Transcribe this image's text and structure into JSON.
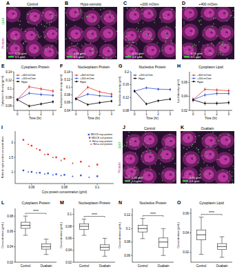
{
  "images": [
    {
      "panel": "A",
      "title": "Control",
      "channels": [
        {
          "name": "Lipid",
          "color": "#44c044"
        },
        {
          "name": "Protein",
          "color": "#c23aa8"
        }
      ],
      "scale_labels": [
        {
          "label": "0.16 g/ml",
          "color": "#c23aa8"
        },
        {
          "label": "0.1 g/ml",
          "color": "#44c044"
        }
      ]
    },
    {
      "panel": "B",
      "title": "Hypo-osmotic",
      "scale_labels": [
        {
          "label": "0.16 g/ml",
          "color": "#c23aa8"
        },
        {
          "label": "0.1 g/ml",
          "color": "#44c044"
        }
      ]
    },
    {
      "panel": "C",
      "title": "+200 mOsm",
      "scale_labels": [
        {
          "label": "0.16 g/ml",
          "color": "#c23aa8"
        },
        {
          "label": "0.1 g/ml",
          "color": "#44c044"
        }
      ]
    },
    {
      "panel": "D",
      "title": "+400 mOsm",
      "scale_labels": [
        {
          "label": "0.16 g/ml",
          "color": "#c23aa8"
        },
        {
          "label": "0.1 g/ml",
          "color": "#44c044"
        }
      ]
    },
    {
      "panel": "J",
      "title": "Control",
      "channels": [
        {
          "name": "Lipid",
          "color": "#44c044"
        },
        {
          "name": "Protein",
          "color": "#c23aa8"
        }
      ],
      "scale_labels": [
        {
          "label": "0.16 g/ml",
          "color": "#c23aa8"
        },
        {
          "label": "0.1 g/ml",
          "color": "#44c044"
        }
      ]
    },
    {
      "panel": "K",
      "title": "Ouabain",
      "scale_labels": [
        {
          "label": "0.16 g/ml",
          "color": "#c23aa8"
        },
        {
          "label": "0.1 g/ml",
          "color": "#44c044"
        }
      ]
    }
  ],
  "chart_data": [
    {
      "panel": "E",
      "type": "line",
      "title": "Cytoplasm Protein",
      "x_label": "Time (hr)",
      "y_label": "Cytoplasm density (g/ml)",
      "x": [
        0,
        1,
        2,
        3
      ],
      "xlim": [
        -0.3,
        3.3
      ],
      "xticks": [
        0,
        1,
        2,
        3
      ],
      "ylim": [
        0.05,
        0.14
      ],
      "yticks": [
        0.06,
        0.08,
        0.1,
        0.12,
        0.14
      ],
      "legend": "upper left",
      "series": [
        {
          "name": "+400 mOsm",
          "color": "#e8322a",
          "marker": "circle",
          "values": [
            0.075,
            0.105,
            0.1,
            0.095
          ],
          "errors": [
            0.004,
            0.005,
            0.005,
            0.005
          ]
        },
        {
          "name": "+200 mOsm",
          "color": "#3050d0",
          "marker": "circle",
          "values": [
            0.075,
            0.09,
            0.087,
            0.085
          ],
          "errors": [
            0.004,
            0.004,
            0.004,
            0.004
          ]
        },
        {
          "name": "Hypo",
          "color": "#000000",
          "marker": "circle",
          "values": [
            0.075,
            0.06,
            0.065,
            0.07
          ],
          "errors": [
            0.004,
            0.004,
            0.004,
            0.004
          ]
        }
      ]
    },
    {
      "panel": "F",
      "type": "line",
      "title": "Nucleoplasm Protein",
      "x_label": "Time (hr)",
      "y_label": "Nucleoplasm density (g/ml)",
      "x": [
        0,
        1,
        2,
        3
      ],
      "xlim": [
        -0.3,
        3.3
      ],
      "xticks": [
        0,
        1,
        2,
        3
      ],
      "ylim": [
        0.04,
        0.14
      ],
      "yticks": [
        0.04,
        0.06,
        0.08,
        0.1,
        0.12,
        0.14
      ],
      "legend": "upper left",
      "series": [
        {
          "name": "+400 mOsm",
          "color": "#e8322a",
          "marker": "circle",
          "values": [
            0.07,
            0.1,
            0.088,
            0.082
          ],
          "errors": [
            0.004,
            0.005,
            0.005,
            0.005
          ]
        },
        {
          "name": "+200 mOsm",
          "color": "#3050d0",
          "marker": "circle",
          "values": [
            0.07,
            0.082,
            0.078,
            0.076
          ],
          "errors": [
            0.004,
            0.004,
            0.004,
            0.004
          ]
        },
        {
          "name": "Hypo",
          "color": "#000000",
          "marker": "circle",
          "values": [
            0.07,
            0.055,
            0.06,
            0.064
          ],
          "errors": [
            0.004,
            0.004,
            0.004,
            0.004
          ]
        }
      ]
    },
    {
      "panel": "G",
      "type": "line",
      "title": "Nucleolus Protein",
      "x_label": "Time (hr)",
      "y_label": "Nucleolus density (g/ml)",
      "x": [
        0,
        1,
        2,
        3
      ],
      "xlim": [
        -0.3,
        3.3
      ],
      "xticks": [
        0,
        1,
        2,
        3
      ],
      "ylim": [
        0.08,
        0.2
      ],
      "yticks": [
        0.08,
        0.12,
        0.16,
        0.2
      ],
      "legend": "upper left",
      "series": [
        {
          "name": "+200 mOsm",
          "color": "#3050d0",
          "marker": "circle",
          "values": [
            0.14,
            0.15,
            0.146,
            0.145
          ],
          "errors": [
            0.005,
            0.005,
            0.005,
            0.005
          ]
        },
        {
          "name": "Hypo",
          "color": "#000000",
          "marker": "circle",
          "values": [
            0.14,
            0.1,
            0.11,
            0.115
          ],
          "errors": [
            0.005,
            0.005,
            0.005,
            0.005
          ]
        }
      ]
    },
    {
      "panel": "H",
      "type": "line",
      "title": "Cytoplasm Lipid",
      "x_label": "Time (hr)",
      "y_label": "Lipid density (g/ml)",
      "x": [
        0,
        1,
        2,
        3
      ],
      "xlim": [
        -0.3,
        3.3
      ],
      "xticks": [
        0,
        1,
        2,
        3
      ],
      "ylim": [
        0.02,
        0.075
      ],
      "yticks": [
        0.02,
        0.04,
        0.06
      ],
      "legend": "upper left",
      "series": [
        {
          "name": "+400 mOsm",
          "color": "#e8322a",
          "marker": "circle",
          "values": [
            0.035,
            0.05,
            0.049,
            0.048
          ],
          "errors": [
            0.003,
            0.003,
            0.003,
            0.003
          ]
        },
        {
          "name": "+200 mOsm",
          "color": "#3050d0",
          "marker": "circle",
          "values": [
            0.035,
            0.042,
            0.044,
            0.044
          ],
          "errors": [
            0.003,
            0.003,
            0.003,
            0.003
          ]
        },
        {
          "name": "Hypo",
          "color": "#000000",
          "marker": "circle",
          "values": [
            0.035,
            0.03,
            0.03,
            0.031
          ],
          "errors": [
            0.003,
            0.003,
            0.003,
            0.003
          ]
        }
      ]
    },
    {
      "panel": "I",
      "type": "scatter",
      "x_label": "Cyto protein concentration (g/ml)",
      "y_label": "Ratio to cyto protein concentration",
      "xlim": [
        0.05,
        0.11
      ],
      "xticks": [
        0.06,
        0.08,
        0.1
      ],
      "ylim": [
        0.6,
        2.4
      ],
      "yticks": [
        1,
        1.5,
        2
      ],
      "legend": "upper right",
      "series": [
        {
          "name": "MDCK nup protein",
          "color": "#2f55d4",
          "marker": "square",
          "x": [
            0.055,
            0.06,
            0.065,
            0.07,
            0.075,
            0.08,
            0.09,
            0.1
          ],
          "values": [
            1.05,
            1.0,
            0.97,
            0.95,
            0.92,
            0.9,
            0.88,
            0.85
          ]
        },
        {
          "name": "MDCK nul protein",
          "color": "#e0302a",
          "marker": "square",
          "x": [
            0.055,
            0.06,
            0.065,
            0.07,
            0.075,
            0.08,
            0.09,
            0.1
          ],
          "values": [
            2.1,
            1.9,
            1.75,
            1.6,
            1.5,
            1.45,
            1.35,
            1.25
          ]
        },
        {
          "name": "HeLa nup protein",
          "color": "#2f55d4",
          "marker": "triangle",
          "x": [
            0.058,
            0.063,
            0.068,
            0.073,
            0.078,
            0.085,
            0.095
          ],
          "values": [
            1.0,
            0.97,
            0.93,
            0.9,
            0.88,
            0.85,
            0.82
          ]
        },
        {
          "name": "HeLa nul protein",
          "color": "#e0302a",
          "marker": "triangle",
          "x": [
            0.058,
            0.063,
            0.068,
            0.073,
            0.078,
            0.085,
            0.095
          ],
          "values": [
            1.95,
            1.8,
            1.6,
            1.5,
            1.4,
            1.3,
            1.2
          ]
        }
      ]
    },
    {
      "panel": "L",
      "type": "box",
      "title": "Cytoplasm Protein",
      "y_label": "Concentration (g/mL)",
      "categories": [
        "Control",
        "Ouabain"
      ],
      "ylim": [
        0.02,
        0.09
      ],
      "yticks": [
        0.02,
        0.04,
        0.06,
        0.08
      ],
      "annotation": "****",
      "boxes": [
        {
          "min": 0.055,
          "q1": 0.064,
          "median": 0.068,
          "q3": 0.072,
          "max": 0.08
        },
        {
          "min": 0.03,
          "q1": 0.037,
          "median": 0.04,
          "q3": 0.044,
          "max": 0.05
        }
      ]
    },
    {
      "panel": "M",
      "type": "box",
      "title": "Nucleoplasm Protein",
      "y_label": "Concentration (g/mL)",
      "categories": [
        "Control",
        "Ouabain"
      ],
      "ylim": [
        0.02,
        0.11
      ],
      "yticks": [
        0.02,
        0.04,
        0.06,
        0.08,
        0.1
      ],
      "annotation": "****",
      "boxes": [
        {
          "min": 0.065,
          "q1": 0.075,
          "median": 0.08,
          "q3": 0.084,
          "max": 0.092
        },
        {
          "min": 0.03,
          "q1": 0.04,
          "median": 0.045,
          "q3": 0.049,
          "max": 0.06
        }
      ]
    },
    {
      "panel": "N",
      "type": "box",
      "title": "Nucleolus Protein",
      "y_label": "Concentration (g/mL)",
      "categories": [
        "Control",
        "Ouabain"
      ],
      "ylim": [
        0.05,
        0.13
      ],
      "yticks": [
        0.06,
        0.08,
        0.1,
        0.12
      ],
      "annotation": "****",
      "boxes": [
        {
          "min": 0.085,
          "q1": 0.095,
          "median": 0.1,
          "q3": 0.105,
          "max": 0.115
        },
        {
          "min": 0.06,
          "q1": 0.072,
          "median": 0.08,
          "q3": 0.086,
          "max": 0.1
        }
      ]
    },
    {
      "panel": "O",
      "type": "box",
      "title": "Cytoplasm Lipid",
      "y_label": "Concentration (g/mL)",
      "categories": [
        "Control",
        "Ouabain"
      ],
      "ylim": [
        0.01,
        0.065
      ],
      "yticks": [
        0.02,
        0.04,
        0.06
      ],
      "annotation": "****",
      "boxes": [
        {
          "min": 0.018,
          "q1": 0.033,
          "median": 0.038,
          "q3": 0.043,
          "max": 0.056
        },
        {
          "min": 0.015,
          "q1": 0.023,
          "median": 0.026,
          "q3": 0.029,
          "max": 0.036
        }
      ]
    }
  ]
}
